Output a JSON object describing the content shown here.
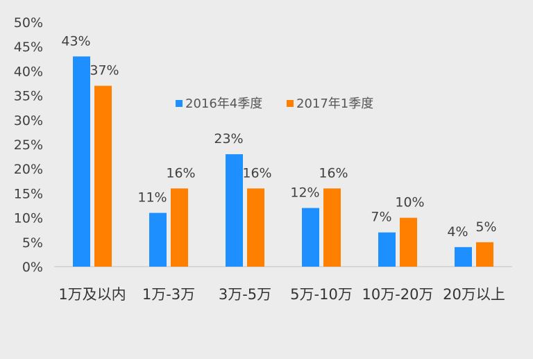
{
  "chart_data": {
    "type": "bar",
    "title": "",
    "xlabel": "",
    "ylabel": "",
    "ylim": [
      0,
      50
    ],
    "yticks": [
      "0%",
      "5%",
      "10%",
      "15%",
      "20%",
      "25%",
      "30%",
      "35%",
      "40%",
      "45%",
      "50%"
    ],
    "categories": [
      "1万及以内",
      "1万-3万",
      "3万-5万",
      "5万-10万",
      "10万-20万",
      "20万以上"
    ],
    "series": [
      {
        "name": "2016年4季度",
        "color": "#1e8fff",
        "values": [
          43,
          11,
          23,
          12,
          7,
          4
        ],
        "labels": [
          "43%",
          "11%",
          "23%",
          "12%",
          "7%",
          "4%"
        ]
      },
      {
        "name": "2017年1季度",
        "color": "#ff8000",
        "values": [
          37,
          16,
          16,
          16,
          10,
          5
        ],
        "labels": [
          "37%",
          "16%",
          "16%",
          "16%",
          "10%",
          "5%"
        ]
      }
    ],
    "legend_position": "center-top",
    "grid": false
  }
}
